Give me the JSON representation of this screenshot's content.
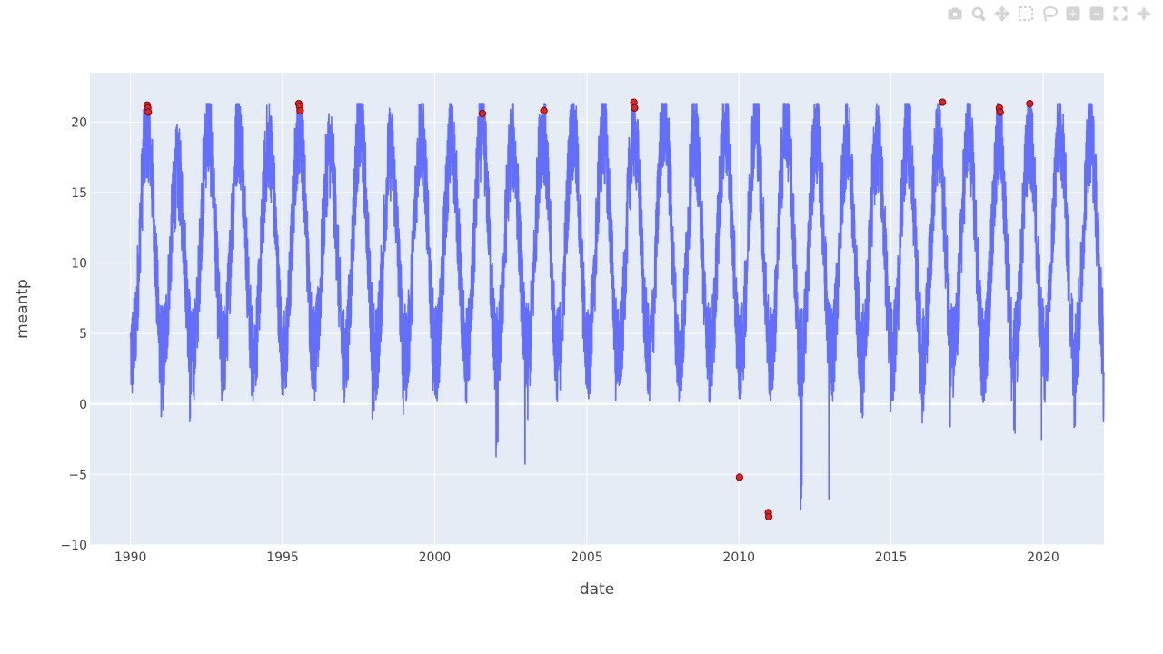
{
  "modebar": {
    "icons": [
      "camera-icon",
      "zoom-icon",
      "pan-icon",
      "box-select-icon",
      "lasso-icon",
      "zoom-in-icon",
      "zoom-out-icon",
      "autoscale-icon",
      "reset-axes-icon"
    ],
    "color": "#d3d3d3"
  },
  "chart_data": {
    "type": "line",
    "title": "",
    "xlabel": "date",
    "ylabel": "meantp",
    "x_range": [
      "1988-09-01",
      "2022-01-01"
    ],
    "ylim": [
      -10,
      23.5
    ],
    "x_ticks": [
      {
        "label": "1990",
        "year": 1990
      },
      {
        "label": "1995",
        "year": 1995
      },
      {
        "label": "2000",
        "year": 2000
      },
      {
        "label": "2005",
        "year": 2005
      },
      {
        "label": "2010",
        "year": 2010
      },
      {
        "label": "2015",
        "year": 2015
      },
      {
        "label": "2020",
        "year": 2020
      }
    ],
    "y_ticks": [
      -10,
      -5,
      0,
      5,
      10,
      15,
      20
    ],
    "y_tick_labels": [
      "−10",
      "−5",
      "0",
      "5",
      "10",
      "15",
      "20"
    ],
    "grid": true,
    "plot_bgcolor": "#e5ecf6",
    "series": [
      {
        "mode": "lines",
        "color": "#636efa",
        "seasonal_profile": {
          "x_start": "1990-01-01",
          "x_end": "2022-01-01",
          "summer_peak": [
            19.5,
            16.5,
            19.3,
            19.2,
            18.5,
            19.5,
            18.0,
            19.5,
            17.8,
            19.0,
            18.5,
            19.5,
            18.5,
            19.3,
            19.3,
            19.0,
            19.3,
            20.5,
            18.8,
            19.5,
            20.0,
            20.0,
            19.0,
            18.8,
            18.5,
            19.0,
            18.5,
            19.0,
            18.8,
            18.8,
            19.5,
            19.0,
            18.8
          ],
          "winter_min": [
            2.7,
            -1.7,
            0.8,
            -0.3,
            1.8,
            0.8,
            0.7,
            -2.8,
            -1.0,
            0.0,
            0.0,
            2.3,
            -4.5,
            -2.0,
            0.2,
            0.2,
            0.5,
            0.3,
            0.5,
            1.0,
            0.5,
            0.0,
            -7.5,
            0.0,
            -1.8,
            0.5,
            -2.0,
            0.5,
            0.0,
            -2.9,
            0.0,
            -1.8,
            1.5
          ]
        }
      },
      {
        "mode": "markers",
        "color": "#d62728",
        "marker_outline": "#8b0000",
        "points": [
          {
            "x": "1990-07-20",
            "y": 21.2
          },
          {
            "x": "1990-07-28",
            "y": 21.0
          },
          {
            "x": "1990-08-03",
            "y": 20.7
          },
          {
            "x": "1995-07-15",
            "y": 21.3
          },
          {
            "x": "1995-07-25",
            "y": 21.1
          },
          {
            "x": "1995-08-01",
            "y": 20.8
          },
          {
            "x": "2001-07-28",
            "y": 20.6
          },
          {
            "x": "2003-08-05",
            "y": 20.8
          },
          {
            "x": "2006-07-20",
            "y": 21.4
          },
          {
            "x": "2006-07-29",
            "y": 21.0
          },
          {
            "x": "2010-01-08",
            "y": -5.2
          },
          {
            "x": "2010-12-20",
            "y": -7.7
          },
          {
            "x": "2010-12-25",
            "y": -8.0
          },
          {
            "x": "2016-09-10",
            "y": 21.4
          },
          {
            "x": "2018-07-25",
            "y": 21.0
          },
          {
            "x": "2018-08-03",
            "y": 20.7
          },
          {
            "x": "2019-07-25",
            "y": 21.3
          }
        ]
      }
    ]
  }
}
